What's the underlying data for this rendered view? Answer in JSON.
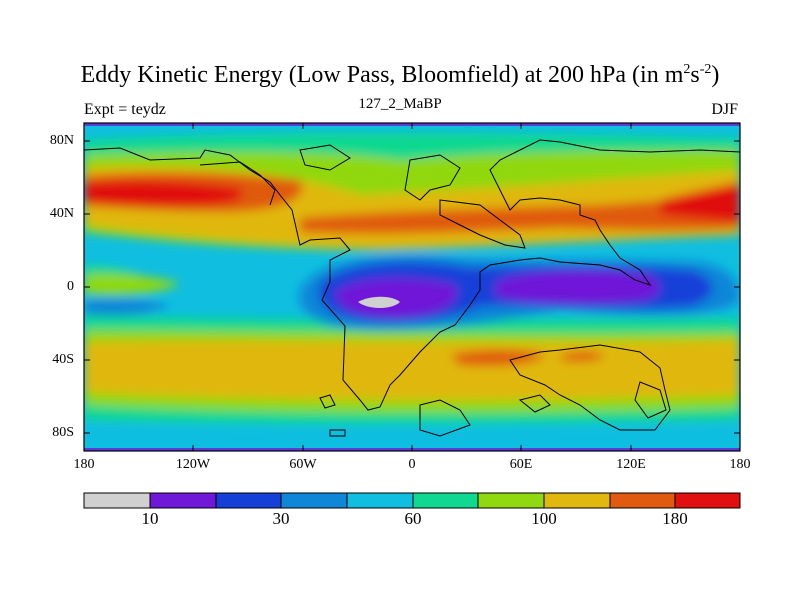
{
  "title_main": "Eddy Kinetic Energy (Low Pass, Bloomfield) at 200 hPa (in m",
  "title_sup1": "2",
  "title_mid": "s",
  "title_sup2": "-2",
  "title_end": ")",
  "subtitle_left": "Expt = teydz",
  "subtitle_center": "127_2_MaBP",
  "subtitle_right": "DJF",
  "y_ticks": [
    "80N",
    "40N",
    "0",
    "40S",
    "80S"
  ],
  "x_ticks": [
    "180",
    "120W",
    "60W",
    "0",
    "60E",
    "120E",
    "180"
  ],
  "colorbar_labels": [
    "10",
    "30",
    "60",
    "100",
    "180"
  ],
  "colors": {
    "c0": "#d0d0d0",
    "c1": "#7018d8",
    "c2": "#1440d8",
    "c3": "#1086d8",
    "c4": "#10bee0",
    "c5": "#10d890",
    "c6": "#90d810",
    "c7": "#e0b810",
    "c8": "#e05a10",
    "c9": "#e01010",
    "band": "#5a3cd6"
  }
}
